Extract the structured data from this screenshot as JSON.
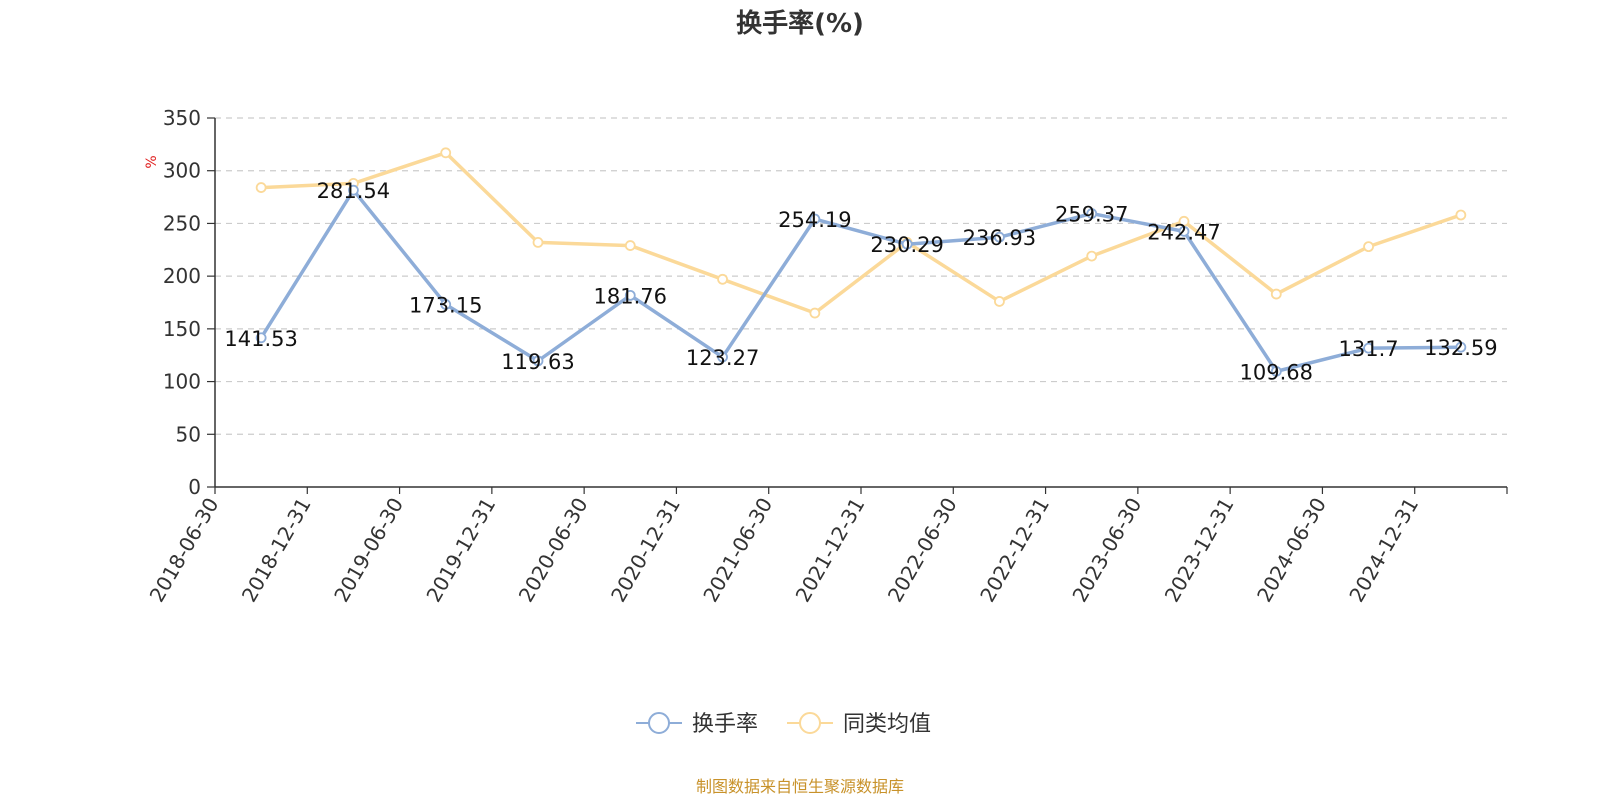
{
  "chart_data": {
    "type": "line",
    "title": "换手率(%)",
    "ylabel": "%",
    "ylim": [
      0,
      350
    ],
    "yticks": [
      0,
      50,
      100,
      150,
      200,
      250,
      300,
      350
    ],
    "grid": true,
    "legend_position": "bottom-center",
    "categories": [
      "2018-06-30",
      "2018-12-31",
      "2019-06-30",
      "2019-12-31",
      "2020-06-30",
      "2020-12-31",
      "2021-06-30",
      "2021-12-31",
      "2022-06-30",
      "2022-12-31",
      "2023-06-30",
      "2023-12-31",
      "2024-06-30",
      "2024-12-31"
    ],
    "series": [
      {
        "name": "换手率",
        "color": "#8eadd8",
        "values": [
          141.53,
          281.54,
          173.15,
          119.63,
          181.76,
          123.27,
          254.19,
          230.29,
          236.93,
          259.37,
          242.47,
          109.68,
          131.7,
          132.59
        ],
        "labels": [
          "141.53",
          "281.54",
          "173.15",
          "119.63",
          "181.76",
          "123.27",
          "254.19",
          "230.29",
          "236.93",
          "259.37",
          "242.47",
          "109.68",
          "131.7",
          "132.59"
        ]
      },
      {
        "name": "同类均值",
        "color": "#fbd999",
        "values": [
          284,
          288,
          317,
          232,
          229,
          197,
          165,
          232,
          176,
          219,
          252,
          183,
          228,
          258
        ]
      }
    ],
    "source": "制图数据来自恒生聚源数据库"
  }
}
